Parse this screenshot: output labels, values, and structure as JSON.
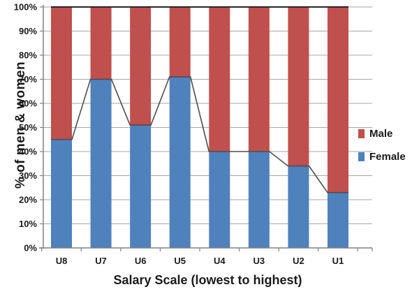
{
  "chart_data": {
    "type": "bar",
    "subtype": "stacked-100-percent-column",
    "title": "",
    "xlabel": "Salary Scale (lowest to highest)",
    "ylabel": "% of men & women",
    "categories": [
      "U8",
      "U7",
      "U6",
      "U5",
      "U4",
      "U3",
      "U2",
      "U1"
    ],
    "series": [
      {
        "name": "Female",
        "color": "#4F81BD",
        "values": [
          45,
          70,
          51,
          71,
          40,
          40,
          34,
          23
        ]
      },
      {
        "name": "Male",
        "color": "#C0504D",
        "values": [
          55,
          30,
          49,
          29,
          60,
          60,
          66,
          77
        ]
      }
    ],
    "line_overlays": [
      {
        "name": "female-top-line",
        "follows": "Female",
        "color": "#4d4d4d",
        "width": 1.6
      },
      {
        "name": "male-top-line",
        "value": 100,
        "color": "#262626",
        "width": 2
      }
    ],
    "ylim": [
      0,
      100
    ],
    "ytick_step": 10,
    "ytick_suffix": "%",
    "grid": true,
    "gridline_color": "#A6A6A6",
    "axis_color": "#808080",
    "text_color": "#1a1a1a",
    "legend": {
      "position": "right",
      "items": [
        {
          "label": "Male",
          "color": "#C0504D"
        },
        {
          "label": "Female",
          "color": "#4F81BD"
        }
      ]
    }
  }
}
